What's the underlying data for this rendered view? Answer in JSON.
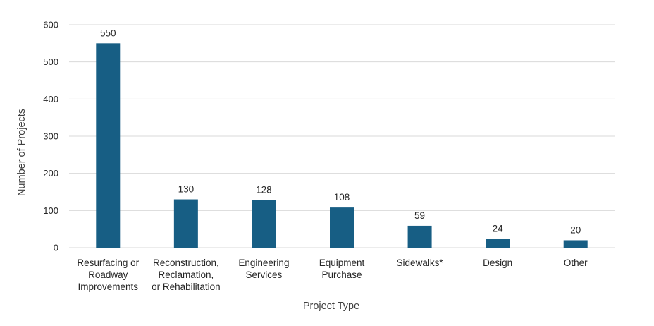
{
  "chart_data": {
    "type": "bar",
    "categories": [
      [
        "Resurfacing or",
        "Roadway",
        "Improvements"
      ],
      [
        "Reconstruction,",
        "Reclamation,",
        "or Rehabilitation"
      ],
      [
        "Engineering",
        "Services"
      ],
      [
        "Equipment",
        "Purchase"
      ],
      [
        "Sidewalks*"
      ],
      [
        "Design"
      ],
      [
        "Other"
      ]
    ],
    "values": [
      550,
      130,
      128,
      108,
      59,
      24,
      20
    ],
    "xlabel": "Project Type",
    "ylabel": "Number of Projects",
    "ylim": [
      0,
      600
    ],
    "yticks": [
      0,
      100,
      200,
      300,
      400,
      500,
      600
    ],
    "grid": true,
    "bar_color": "#175e84"
  }
}
